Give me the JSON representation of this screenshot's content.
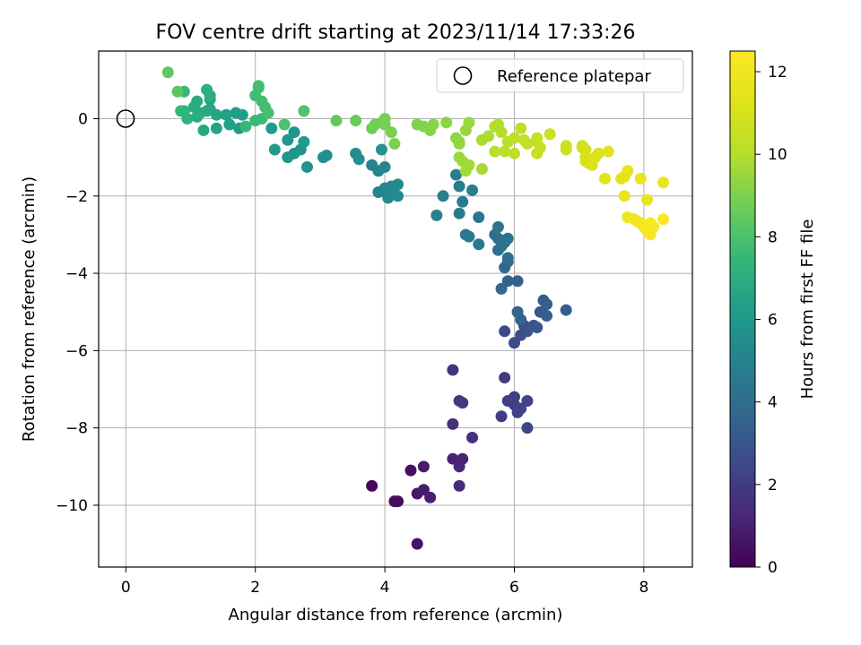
{
  "chart_data": {
    "type": "scatter",
    "title": "FOV centre drift starting at 2023/11/14 17:33:26",
    "xlabel": "Angular distance from reference (arcmin)",
    "ylabel": "Rotation from reference (arcmin)",
    "xlim": [
      -0.42,
      8.75
    ],
    "ylim": [
      -11.6,
      1.75
    ],
    "xticks": [
      0,
      2,
      4,
      6,
      8
    ],
    "yticks": [
      0,
      -2,
      -4,
      -6,
      -8,
      -10
    ],
    "xtick_labels": [
      "0",
      "2",
      "4",
      "6",
      "8"
    ],
    "ytick_labels": [
      "0",
      "−2",
      "−4",
      "−6",
      "−8",
      "−10"
    ],
    "grid": true,
    "legend": {
      "position": "top-right",
      "label": "Reference platepar"
    },
    "reference_point": {
      "x": 0,
      "y": 0
    },
    "colorbar": {
      "label": "Hours from first FF file",
      "range": [
        0,
        12.5
      ],
      "ticks": [
        0,
        2,
        4,
        6,
        8,
        10,
        12
      ],
      "tick_labels": [
        "0",
        "2",
        "4",
        "6",
        "8",
        "10",
        "12"
      ],
      "colormap": "viridis"
    },
    "points": [
      [
        3.8,
        -9.5,
        0.2
      ],
      [
        4.2,
        -9.9,
        0.3
      ],
      [
        4.15,
        -9.9,
        0.4
      ],
      [
        4.4,
        -9.1,
        0.5
      ],
      [
        4.5,
        -11.0,
        0.6
      ],
      [
        4.5,
        -9.7,
        0.7
      ],
      [
        4.6,
        -9.0,
        0.8
      ],
      [
        4.6,
        -9.6,
        0.9
      ],
      [
        4.7,
        -9.8,
        1.0
      ],
      [
        5.05,
        -8.8,
        1.1
      ],
      [
        5.2,
        -8.8,
        1.2
      ],
      [
        5.15,
        -9.0,
        1.3
      ],
      [
        5.15,
        -9.5,
        1.4
      ],
      [
        5.05,
        -7.9,
        1.5
      ],
      [
        5.35,
        -8.25,
        1.6
      ],
      [
        5.05,
        -6.5,
        1.7
      ],
      [
        5.15,
        -7.3,
        1.8
      ],
      [
        5.2,
        -7.35,
        1.9
      ],
      [
        5.8,
        -7.7,
        2.0
      ],
      [
        5.85,
        -6.7,
        2.05
      ],
      [
        5.9,
        -7.3,
        2.1
      ],
      [
        6.0,
        -7.2,
        2.15
      ],
      [
        6.0,
        -7.4,
        2.2
      ],
      [
        6.05,
        -7.6,
        2.25
      ],
      [
        6.1,
        -7.5,
        2.3
      ],
      [
        6.2,
        -7.3,
        2.35
      ],
      [
        6.2,
        -8.0,
        2.4
      ],
      [
        5.85,
        -5.5,
        2.5
      ],
      [
        6.0,
        -5.8,
        2.6
      ],
      [
        6.1,
        -5.6,
        2.7
      ],
      [
        6.15,
        -5.35,
        2.8
      ],
      [
        6.2,
        -5.5,
        2.9
      ],
      [
        6.3,
        -5.35,
        3.0
      ],
      [
        6.35,
        -5.4,
        3.1
      ],
      [
        6.4,
        -5.0,
        3.2
      ],
      [
        6.45,
        -4.7,
        3.25
      ],
      [
        6.5,
        -4.8,
        3.3
      ],
      [
        6.5,
        -5.1,
        3.35
      ],
      [
        6.8,
        -4.95,
        3.4
      ],
      [
        6.05,
        -5.0,
        3.45
      ],
      [
        6.05,
        -4.2,
        3.5
      ],
      [
        6.1,
        -5.2,
        3.55
      ],
      [
        5.9,
        -4.2,
        3.6
      ],
      [
        5.8,
        -4.4,
        3.7
      ],
      [
        5.85,
        -3.85,
        3.8
      ],
      [
        5.9,
        -3.7,
        3.9
      ],
      [
        5.9,
        -3.6,
        4.0
      ],
      [
        5.75,
        -3.4,
        4.05
      ],
      [
        5.7,
        -3.0,
        4.1
      ],
      [
        5.75,
        -3.1,
        4.15
      ],
      [
        5.8,
        -3.3,
        4.2
      ],
      [
        5.85,
        -3.2,
        4.25
      ],
      [
        5.9,
        -3.1,
        4.3
      ],
      [
        5.75,
        -2.8,
        4.35
      ],
      [
        5.45,
        -2.55,
        4.4
      ],
      [
        5.45,
        -3.25,
        4.5
      ],
      [
        5.25,
        -3.0,
        4.55
      ],
      [
        5.3,
        -3.05,
        4.6
      ],
      [
        5.2,
        -2.15,
        4.65
      ],
      [
        5.15,
        -2.45,
        4.7
      ],
      [
        5.35,
        -1.85,
        4.75
      ],
      [
        5.15,
        -1.75,
        4.8
      ],
      [
        5.1,
        -1.45,
        4.85
      ],
      [
        4.8,
        -2.5,
        4.9
      ],
      [
        4.9,
        -2.0,
        4.95
      ],
      [
        3.8,
        -1.2,
        5.0
      ],
      [
        3.9,
        -1.9,
        5.05
      ],
      [
        3.9,
        -1.35,
        5.1
      ],
      [
        4.0,
        -1.25,
        5.15
      ],
      [
        4.0,
        -1.8,
        5.2
      ],
      [
        4.05,
        -2.05,
        5.25
      ],
      [
        4.1,
        -1.75,
        5.3
      ],
      [
        4.15,
        -1.95,
        5.35
      ],
      [
        4.2,
        -1.7,
        5.4
      ],
      [
        4.2,
        -2.0,
        5.45
      ],
      [
        3.55,
        -0.9,
        5.5
      ],
      [
        3.6,
        -1.05,
        5.55
      ],
      [
        3.1,
        -0.95,
        5.6
      ],
      [
        3.05,
        -1.0,
        5.65
      ],
      [
        3.95,
        -0.8,
        5.7
      ],
      [
        2.8,
        -1.25,
        5.75
      ],
      [
        2.7,
        -0.8,
        5.8
      ],
      [
        2.6,
        -0.35,
        5.85
      ],
      [
        2.6,
        -0.9,
        5.9
      ],
      [
        2.5,
        -1.0,
        5.95
      ],
      [
        2.5,
        -0.55,
        6.0
      ],
      [
        2.75,
        -0.6,
        6.05
      ],
      [
        2.3,
        -0.8,
        6.1
      ],
      [
        2.25,
        -0.25,
        6.15
      ],
      [
        1.75,
        -0.25,
        6.2
      ],
      [
        1.7,
        0.15,
        6.25
      ],
      [
        1.8,
        0.1,
        6.3
      ],
      [
        1.6,
        -0.15,
        6.35
      ],
      [
        1.55,
        0.1,
        6.4
      ],
      [
        1.4,
        -0.25,
        6.5
      ],
      [
        1.4,
        0.1,
        6.55
      ],
      [
        1.3,
        0.25,
        6.6
      ],
      [
        1.3,
        0.5,
        6.65
      ],
      [
        1.25,
        0.2,
        6.7
      ],
      [
        1.2,
        -0.3,
        6.75
      ],
      [
        1.15,
        0.15,
        6.8
      ],
      [
        1.1,
        0.45,
        6.9
      ],
      [
        1.1,
        0.05,
        6.95
      ],
      [
        1.05,
        0.3,
        7.0
      ],
      [
        1.3,
        0.6,
        7.05
      ],
      [
        1.25,
        0.75,
        7.1
      ],
      [
        0.95,
        0.0,
        7.2
      ],
      [
        0.9,
        0.2,
        7.3
      ],
      [
        0.85,
        0.2,
        7.4
      ],
      [
        0.9,
        0.7,
        7.5
      ],
      [
        1.85,
        -0.2,
        7.55
      ],
      [
        2.0,
        -0.05,
        7.6
      ],
      [
        2.1,
        0.0,
        7.65
      ],
      [
        2.0,
        0.6,
        7.7
      ],
      [
        2.05,
        0.8,
        7.75
      ],
      [
        2.05,
        0.85,
        7.8
      ],
      [
        2.1,
        0.45,
        7.85
      ],
      [
        2.15,
        0.3,
        7.9
      ],
      [
        2.2,
        0.15,
        7.95
      ],
      [
        2.45,
        -0.15,
        8.0
      ],
      [
        2.75,
        0.2,
        8.1
      ],
      [
        0.8,
        0.7,
        8.3
      ],
      [
        0.65,
        1.2,
        8.4
      ],
      [
        3.25,
        -0.05,
        8.5
      ],
      [
        3.55,
        -0.05,
        8.6
      ],
      [
        3.8,
        -0.25,
        8.7
      ],
      [
        3.85,
        -0.15,
        8.75
      ],
      [
        3.95,
        -0.1,
        8.8
      ],
      [
        4.0,
        -0.15,
        8.85
      ],
      [
        4.0,
        0.0,
        8.9
      ],
      [
        4.1,
        -0.35,
        8.95
      ],
      [
        4.15,
        -0.65,
        9.0
      ],
      [
        4.5,
        -0.15,
        9.05
      ],
      [
        4.6,
        -0.2,
        9.1
      ],
      [
        4.7,
        -0.3,
        9.15
      ],
      [
        4.75,
        -0.15,
        9.2
      ],
      [
        4.95,
        -0.1,
        9.25
      ],
      [
        5.1,
        -0.5,
        9.3
      ],
      [
        5.15,
        -0.6,
        9.35
      ],
      [
        5.15,
        -0.65,
        9.4
      ],
      [
        5.25,
        -0.3,
        9.45
      ],
      [
        5.3,
        -0.1,
        9.5
      ],
      [
        5.15,
        -1.0,
        9.55
      ],
      [
        5.2,
        -1.1,
        9.6
      ],
      [
        5.3,
        -1.2,
        9.65
      ],
      [
        5.25,
        -1.35,
        9.7
      ],
      [
        5.5,
        -1.3,
        9.75
      ],
      [
        5.5,
        -0.55,
        9.8
      ],
      [
        5.6,
        -0.45,
        9.85
      ],
      [
        5.7,
        -0.2,
        9.9
      ],
      [
        5.75,
        -0.15,
        9.95
      ],
      [
        5.8,
        -0.35,
        10.0
      ],
      [
        5.9,
        -0.6,
        10.05
      ],
      [
        5.7,
        -0.85,
        10.1
      ],
      [
        5.85,
        -0.85,
        10.15
      ],
      [
        6.0,
        -0.5,
        10.2
      ],
      [
        6.0,
        -0.9,
        10.25
      ],
      [
        6.1,
        -0.25,
        10.3
      ],
      [
        6.2,
        -0.65,
        10.35
      ],
      [
        6.15,
        -0.55,
        10.4
      ],
      [
        6.35,
        -0.5,
        10.45
      ],
      [
        6.35,
        -0.6,
        10.5
      ],
      [
        6.35,
        -0.9,
        10.55
      ],
      [
        6.4,
        -0.75,
        10.6
      ],
      [
        6.55,
        -0.4,
        10.65
      ],
      [
        6.8,
        -0.7,
        10.7
      ],
      [
        6.8,
        -0.8,
        10.75
      ],
      [
        7.05,
        -0.7,
        10.8
      ],
      [
        7.05,
        -0.75,
        10.85
      ],
      [
        7.1,
        -0.8,
        10.9
      ],
      [
        7.1,
        -1.0,
        10.95
      ],
      [
        7.1,
        -1.1,
        11.0
      ],
      [
        7.15,
        -1.15,
        11.05
      ],
      [
        7.2,
        -1.2,
        11.1
      ],
      [
        7.25,
        -1.0,
        11.15
      ],
      [
        7.3,
        -0.9,
        11.2
      ],
      [
        7.4,
        -1.55,
        11.3
      ],
      [
        7.45,
        -0.85,
        11.35
      ],
      [
        7.65,
        -1.55,
        11.4
      ],
      [
        7.7,
        -1.5,
        11.5
      ],
      [
        7.75,
        -1.35,
        11.55
      ],
      [
        7.7,
        -2.0,
        11.65
      ],
      [
        7.95,
        -1.55,
        11.7
      ],
      [
        8.05,
        -2.1,
        11.75
      ],
      [
        8.3,
        -1.65,
        11.8
      ],
      [
        7.75,
        -2.55,
        11.9
      ],
      [
        7.85,
        -2.6,
        12.0
      ],
      [
        7.9,
        -2.65,
        12.05
      ],
      [
        7.95,
        -2.7,
        12.1
      ],
      [
        8.0,
        -2.8,
        12.15
      ],
      [
        8.05,
        -2.9,
        12.2
      ],
      [
        8.1,
        -2.7,
        12.25
      ],
      [
        8.1,
        -3.0,
        12.3
      ],
      [
        8.15,
        -2.8,
        12.35
      ],
      [
        8.3,
        -2.6,
        12.4
      ]
    ]
  }
}
